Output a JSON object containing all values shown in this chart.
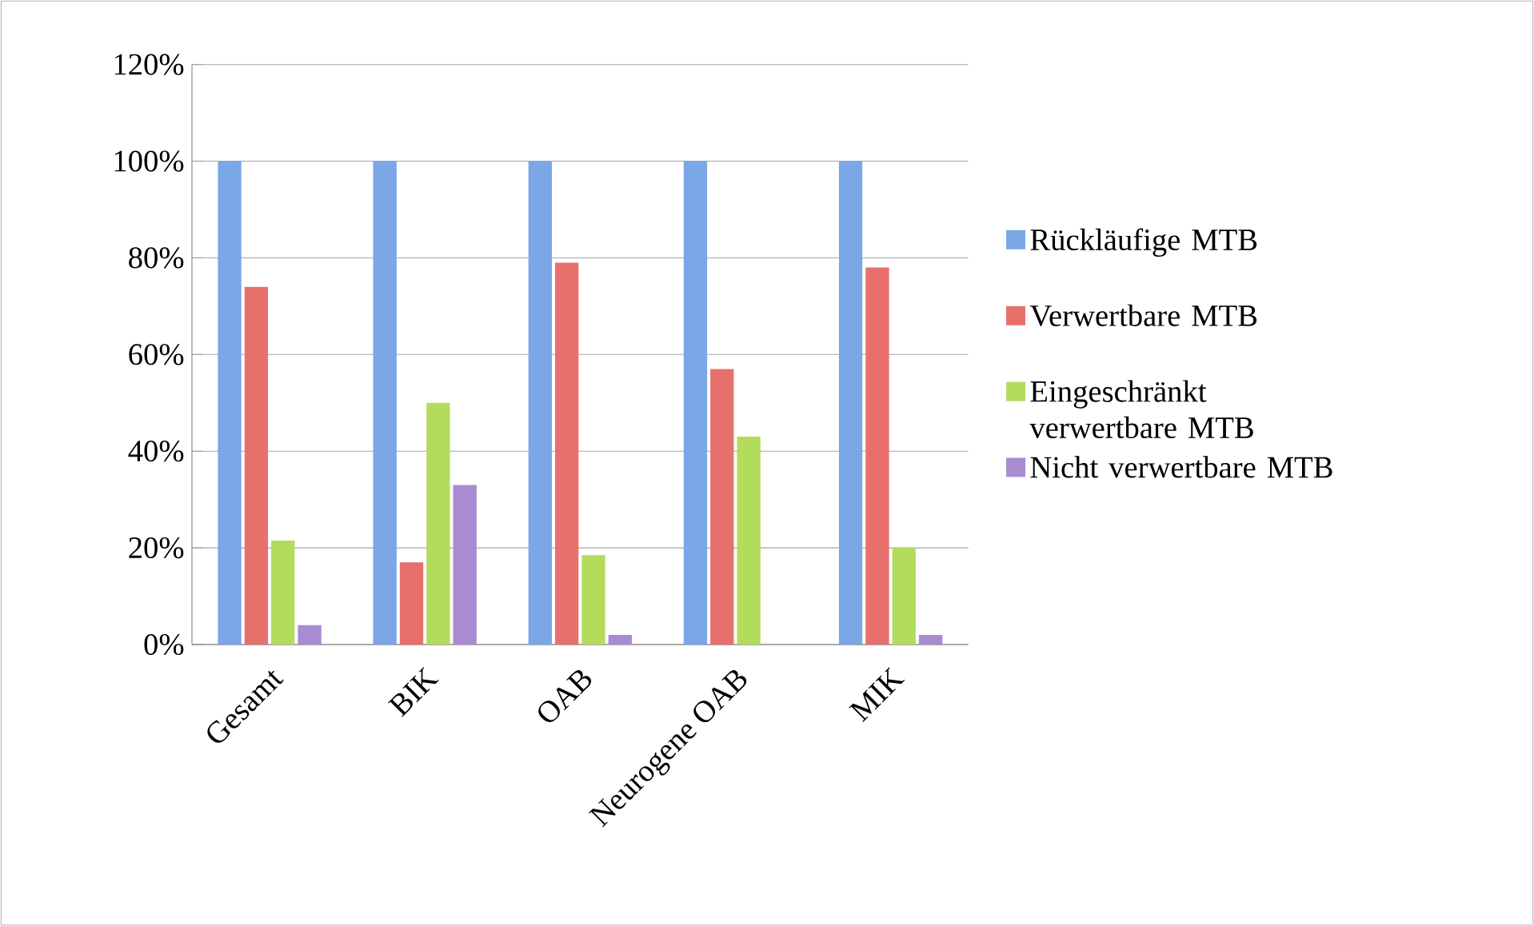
{
  "chart_data": {
    "type": "bar",
    "categories": [
      "Gesamt",
      "BIK",
      "OAB",
      "Neurogene OAB",
      "MIK"
    ],
    "series": [
      {
        "name": "Rückläufige MTB",
        "color": "#7ba7e6",
        "values": [
          100,
          100,
          100,
          100,
          100
        ]
      },
      {
        "name": "Verwertbare MTB",
        "color": "#e8706c",
        "values": [
          74,
          17,
          79,
          57,
          78
        ]
      },
      {
        "name": "Eingeschränkt verwertbare MTB",
        "color": "#b3dc5c",
        "values": [
          21.5,
          50,
          18.5,
          43,
          20
        ]
      },
      {
        "name": "Nicht verwertbare MTB",
        "color": "#a88bd0",
        "values": [
          4,
          33,
          2,
          0,
          2
        ]
      }
    ],
    "ylim": [
      0,
      120
    ],
    "yticks": [
      {
        "value": 0,
        "label": "0%"
      },
      {
        "value": 20,
        "label": "20%"
      },
      {
        "value": 40,
        "label": "40%"
      },
      {
        "value": 60,
        "label": "60%"
      },
      {
        "value": 80,
        "label": "80%"
      },
      {
        "value": 100,
        "label": "100%"
      },
      {
        "value": 120,
        "label": "120%"
      }
    ],
    "grid": "y",
    "legend": "right"
  }
}
